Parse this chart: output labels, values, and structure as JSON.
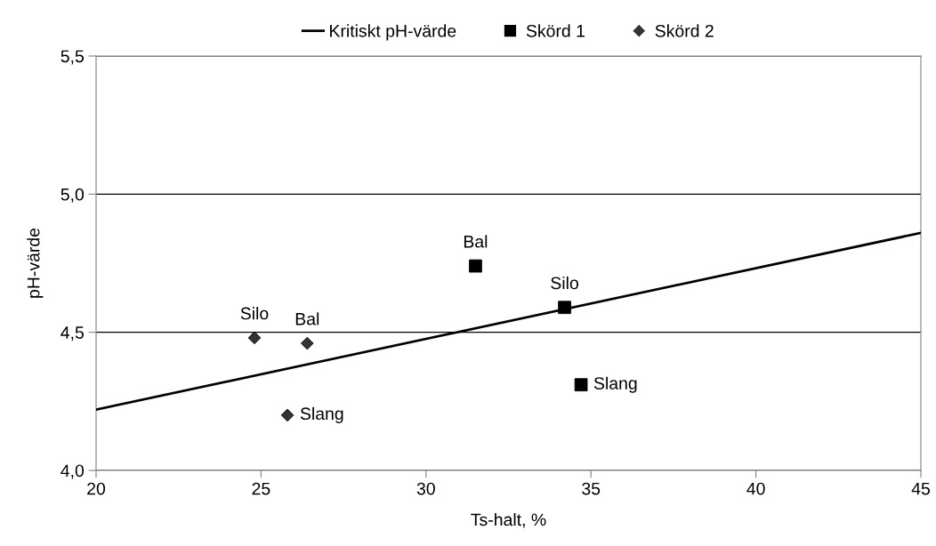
{
  "chart_data": {
    "type": "scatter",
    "xlabel": "Ts-halt, %",
    "ylabel": "pH-värde",
    "series": [
      {
        "name": "Kritiskt pH-värde",
        "type": "line",
        "color": "#000000",
        "marker": "none",
        "line_style": "solid",
        "x": [
          20,
          45
        ],
        "values": [
          4.22,
          4.86
        ]
      },
      {
        "name": "Skörd 1",
        "color": "#000000",
        "marker": "square",
        "x": [
          31.5,
          34.2,
          34.7
        ],
        "values": [
          4.74,
          4.59,
          4.31
        ]
      },
      {
        "name": "Skörd 2",
        "color": "#333333",
        "marker": "diamond",
        "x": [
          24.8,
          26.4,
          25.8
        ],
        "values": [
          4.48,
          4.46,
          4.2
        ]
      }
    ],
    "annotations": [
      {
        "text": "Bal",
        "x": 31.5,
        "y": 4.74
      },
      {
        "text": "Silo",
        "x": 34.2,
        "y": 4.59
      },
      {
        "text": "Slang",
        "x": 34.7,
        "y": 4.31
      },
      {
        "text": "Silo",
        "x": 24.8,
        "y": 4.48
      },
      {
        "text": "Bal",
        "x": 26.4,
        "y": 4.46
      },
      {
        "text": "Slang",
        "x": 25.8,
        "y": 4.2
      }
    ],
    "xlim": [
      20,
      45
    ],
    "xticks": [
      20,
      25,
      30,
      35,
      40,
      45
    ],
    "ylim": [
      4.0,
      5.5
    ],
    "yticks": [
      {
        "value": 4.0,
        "label": "4,0"
      },
      {
        "value": 4.5,
        "label": "4,5"
      },
      {
        "value": 5.0,
        "label": "5,0"
      },
      {
        "value": 5.5,
        "label": "5,5"
      }
    ],
    "grid": "y",
    "legend": "top"
  }
}
